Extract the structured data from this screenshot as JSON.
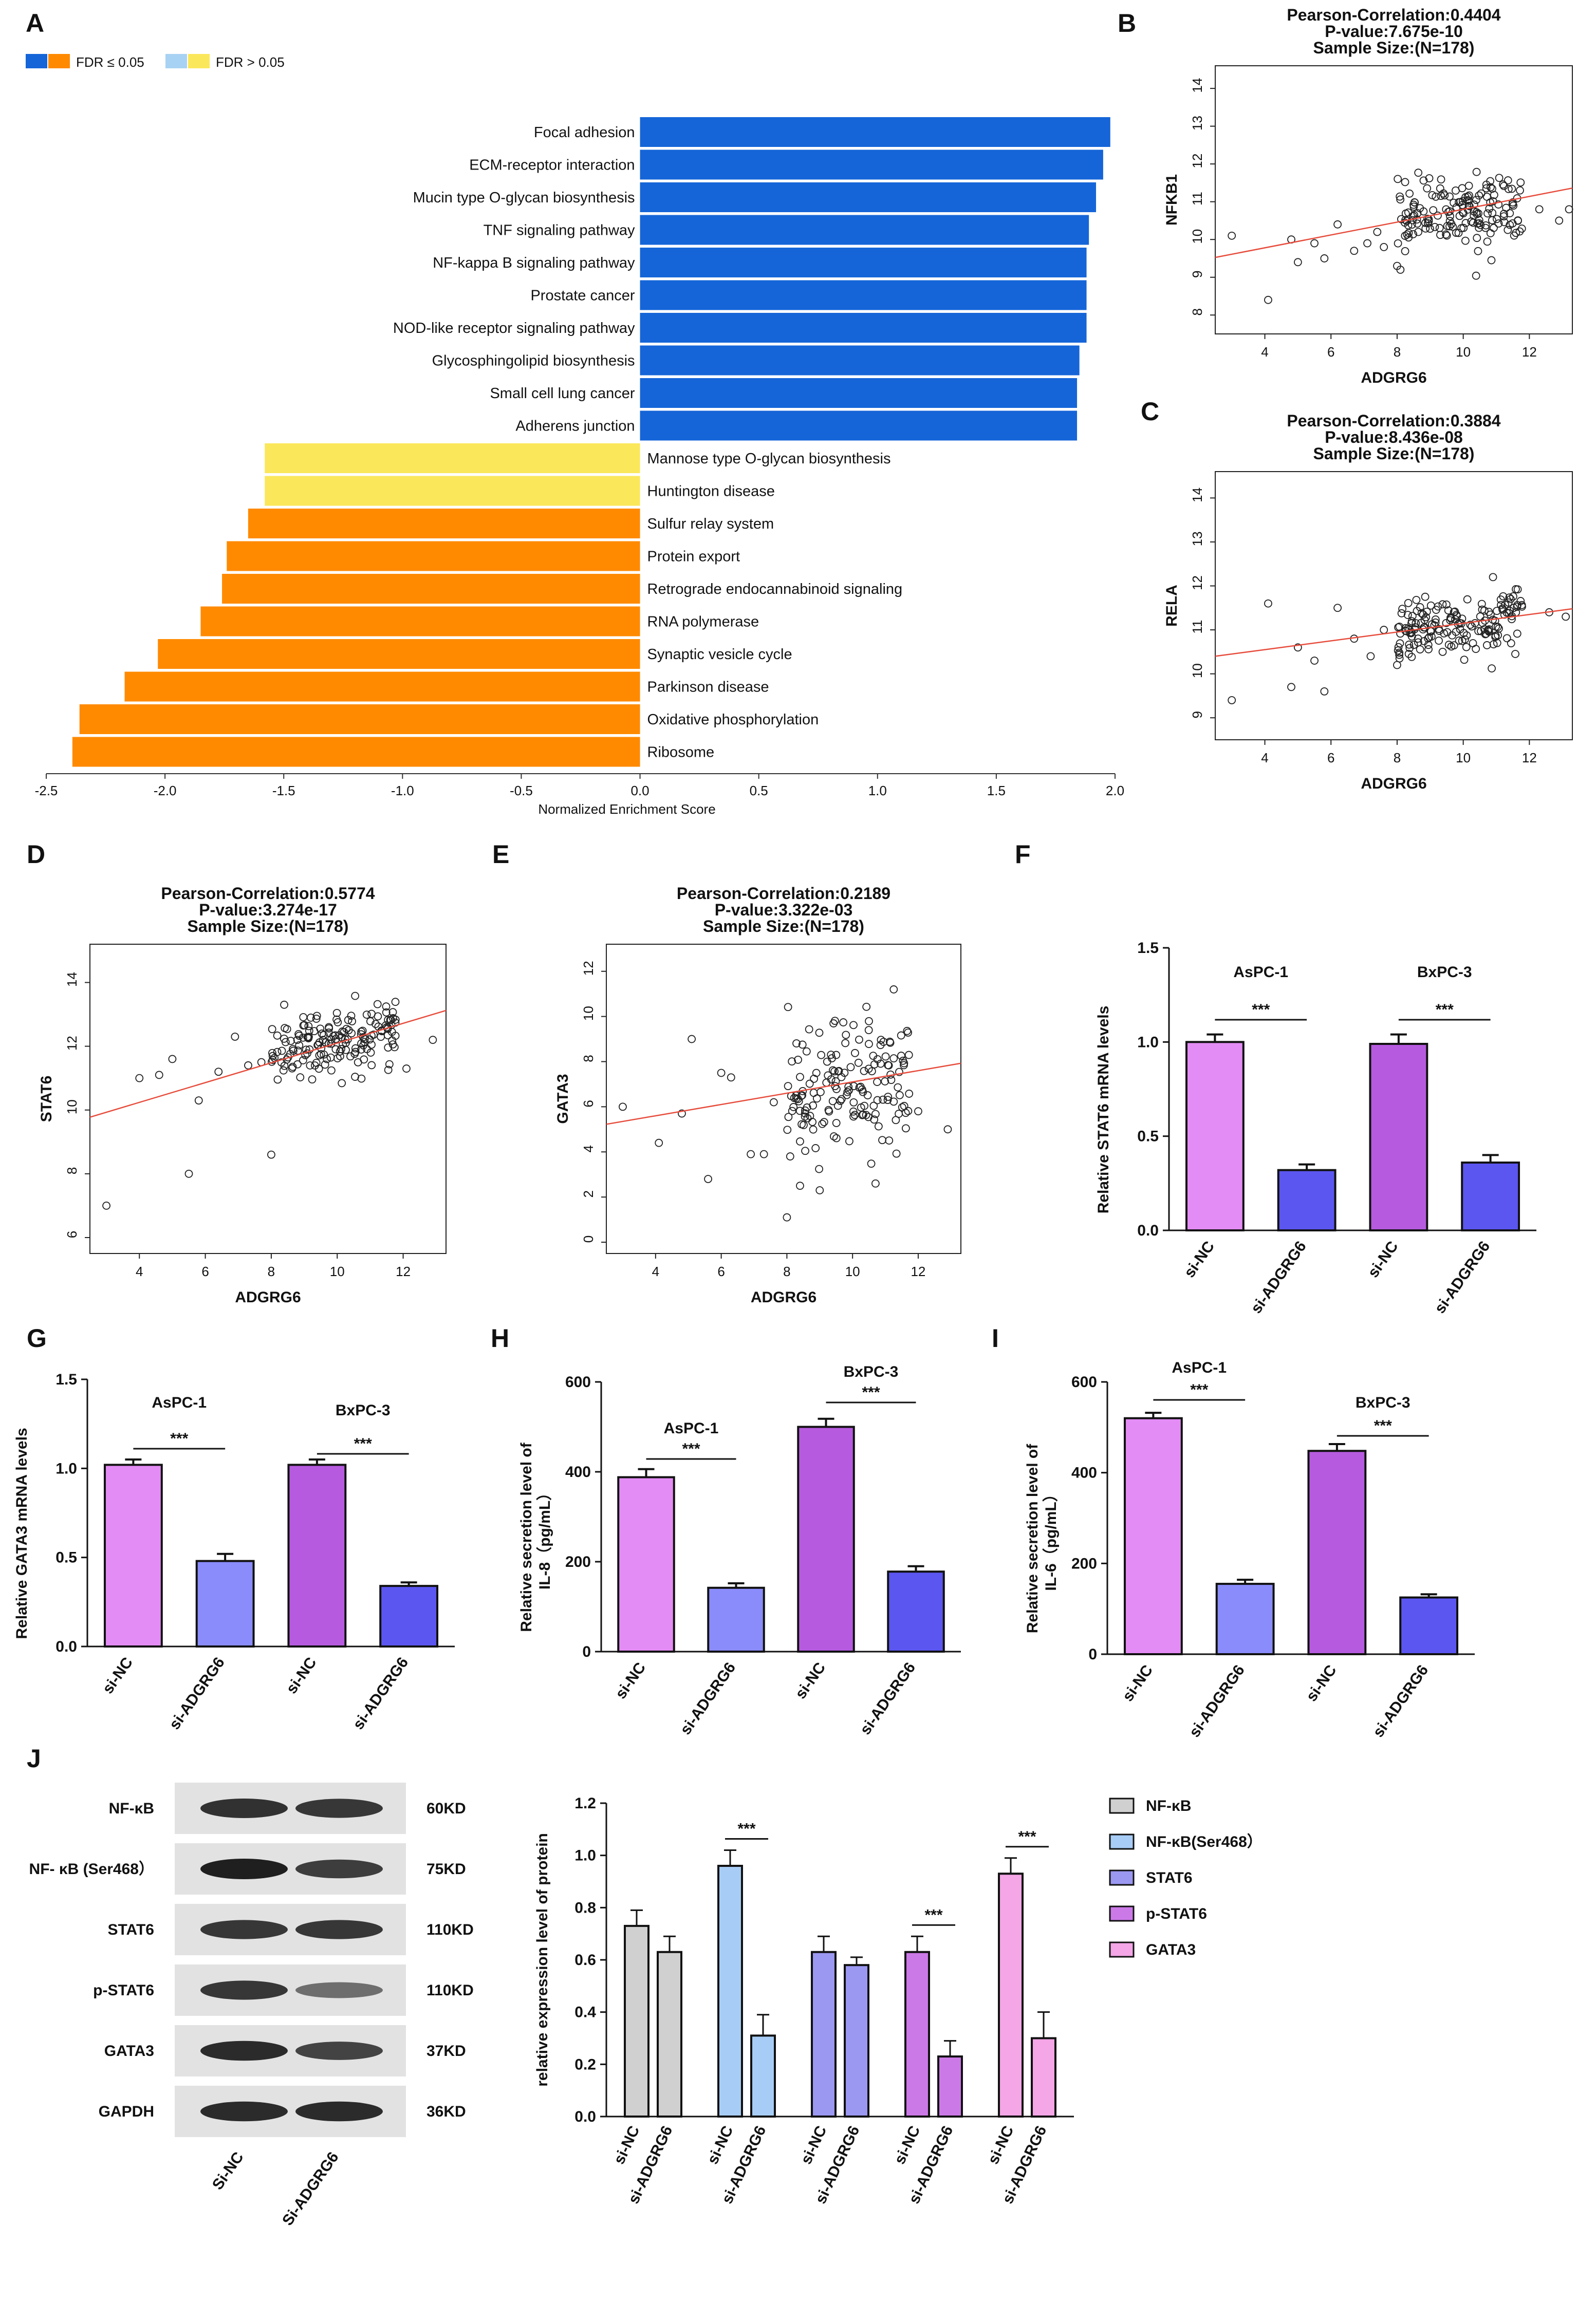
{
  "colors": {
    "up_sig": "#1565d8",
    "up_ns": "#a8d2f3",
    "down_sig": "#ff8a00",
    "down_ns": "#fbe75a",
    "scatter_line": "#e74c3c",
    "bar_nc": "#e48cf5",
    "bar_kd_light": "#8a8cfb",
    "bar_nc_dark": "#b65be0",
    "bar_kd_dark": "#5b56f0",
    "j_nfkb": "#d0d0d0",
    "j_nfkb468": "#a7cdf6",
    "j_stat6": "#9b98f2",
    "j_pstat6": "#cc79e8",
    "j_gata3": "#f4a6e6"
  },
  "panel_labels": [
    "A",
    "B",
    "C",
    "D",
    "E",
    "F",
    "G",
    "H",
    "I",
    "J"
  ],
  "chart_data": [
    {
      "id": "A",
      "type": "bar",
      "xlabel": "Normalized Enrichment Score",
      "xlim": [
        -2.5,
        2.0
      ],
      "xticks": [
        "-2.5",
        "-2.0",
        "-1.5",
        "-1.0",
        "-0.5",
        "0.0",
        "0.5",
        "1.0",
        "1.5",
        "2.0"
      ],
      "legend": {
        "sig": "FDR ≤ 0.05",
        "ns": "FDR > 0.05"
      },
      "categories": [
        "Focal adhesion",
        "ECM-receptor interaction",
        "Mucin type O-glycan biosynthesis",
        "TNF signaling pathway",
        "NF-kappa B signaling pathway",
        "Prostate cancer",
        "NOD-like receptor signaling pathway",
        "Glycosphingolipid biosynthesis",
        "Small cell lung cancer",
        "Adherens junction",
        "Mannose type O-glycan biosynthesis",
        "Huntington disease",
        "Sulfur relay system",
        "Protein export",
        "Retrograde endocannabinoid signaling",
        "RNA polymerase",
        "Synaptic vesicle cycle",
        "Parkinson disease",
        "Oxidative phosphorylation",
        "Ribosome"
      ],
      "values": [
        1.98,
        1.95,
        1.92,
        1.89,
        1.88,
        1.88,
        1.88,
        1.85,
        1.84,
        1.84,
        -1.58,
        -1.58,
        -1.65,
        -1.74,
        -1.76,
        -1.85,
        -2.03,
        -2.17,
        -2.36,
        -2.39
      ],
      "significant": [
        true,
        true,
        true,
        true,
        true,
        true,
        true,
        true,
        true,
        true,
        false,
        false,
        true,
        true,
        true,
        true,
        true,
        true,
        true,
        true
      ]
    },
    {
      "id": "B",
      "type": "scatter",
      "title": [
        "Pearson-Correlation:0.4404",
        "P-value:7.675e-10",
        "Sample Size:(N=178)"
      ],
      "xlabel": "ADGRG6",
      "ylabel": "NFKB1",
      "xlim": [
        2.5,
        13.3
      ],
      "ylim": [
        7.5,
        14.6
      ],
      "xticks": [
        "4",
        "6",
        "8",
        "10",
        "12"
      ],
      "yticks": [
        "8",
        "9",
        "10",
        "11",
        "12",
        "13",
        "14"
      ],
      "fit": {
        "slope": 0.17,
        "intercept": 9.1
      },
      "outliers": [
        [
          3.0,
          10.1
        ],
        [
          4.1,
          8.4
        ],
        [
          4.8,
          10.0
        ],
        [
          5.0,
          9.4
        ],
        [
          5.5,
          9.9
        ],
        [
          5.8,
          9.5
        ],
        [
          6.2,
          10.4
        ],
        [
          6.7,
          9.7
        ],
        [
          7.1,
          9.9
        ],
        [
          7.4,
          10.2
        ],
        [
          7.6,
          9.8
        ],
        [
          8.0,
          9.3
        ],
        [
          8.1,
          9.2
        ],
        [
          12.3,
          10.8
        ],
        [
          12.9,
          10.5
        ],
        [
          13.2,
          10.8
        ]
      ],
      "cluster": {
        "n": 162,
        "x_range": [
          8.0,
          11.8
        ],
        "y_center": 10.7,
        "y_spread": 0.45
      }
    },
    {
      "id": "C",
      "type": "scatter",
      "title": [
        "Pearson-Correlation:0.3884",
        "P-value:8.436e-08",
        "Sample Size:(N=178)"
      ],
      "xlabel": "ADGRG6",
      "ylabel": "RELA",
      "xlim": [
        2.5,
        13.3
      ],
      "ylim": [
        8.5,
        14.6
      ],
      "xticks": [
        "4",
        "6",
        "8",
        "10",
        "12"
      ],
      "yticks": [
        "9",
        "10",
        "11",
        "12",
        "13",
        "14"
      ],
      "fit": {
        "slope": 0.1,
        "intercept": 10.15
      },
      "outliers": [
        [
          3.0,
          9.4
        ],
        [
          4.1,
          11.6
        ],
        [
          4.8,
          9.7
        ],
        [
          5.0,
          10.6
        ],
        [
          5.5,
          10.3
        ],
        [
          5.8,
          9.6
        ],
        [
          6.2,
          11.5
        ],
        [
          6.7,
          10.8
        ],
        [
          7.2,
          10.4
        ],
        [
          7.6,
          11.0
        ],
        [
          8.0,
          10.2
        ],
        [
          10.9,
          12.2
        ],
        [
          12.6,
          11.4
        ],
        [
          13.1,
          11.3
        ]
      ],
      "cluster": {
        "n": 164,
        "x_range": [
          8.0,
          11.8
        ],
        "y_center": 11.1,
        "y_spread": 0.35
      }
    },
    {
      "id": "D",
      "type": "scatter",
      "title": [
        "Pearson-Correlation:0.5774",
        "P-value:3.274e-17",
        "Sample Size:(N=178)"
      ],
      "xlabel": "ADGRG6",
      "ylabel": "STAT6",
      "xlim": [
        2.5,
        13.3
      ],
      "ylim": [
        5.5,
        15.2
      ],
      "xticks": [
        "4",
        "6",
        "8",
        "10",
        "12"
      ],
      "yticks": [
        "6",
        "8",
        "10",
        "12",
        "14"
      ],
      "fit": {
        "slope": 0.31,
        "intercept": 9.0
      },
      "outliers": [
        [
          3.0,
          7.0
        ],
        [
          4.0,
          11.0
        ],
        [
          4.6,
          11.1
        ],
        [
          5.0,
          11.6
        ],
        [
          5.5,
          8.0
        ],
        [
          5.8,
          10.3
        ],
        [
          6.4,
          11.2
        ],
        [
          6.9,
          12.3
        ],
        [
          7.3,
          11.4
        ],
        [
          7.7,
          11.5
        ],
        [
          8.0,
          8.6
        ],
        [
          12.1,
          11.3
        ],
        [
          12.9,
          12.2
        ]
      ],
      "cluster": {
        "n": 165,
        "x_range": [
          8.0,
          11.8
        ],
        "y_center": 12.2,
        "y_spread": 0.5
      }
    },
    {
      "id": "E",
      "type": "scatter",
      "title": [
        "Pearson-Correlation:0.2189",
        "P-value:3.322e-03",
        "Sample Size:(N=178)"
      ],
      "xlabel": "ADGRG6",
      "ylabel": "GATA3",
      "xlim": [
        2.5,
        13.3
      ],
      "ylim": [
        -0.5,
        13.2
      ],
      "xticks": [
        "4",
        "6",
        "8",
        "10",
        "12"
      ],
      "yticks": [
        "0",
        "2",
        "4",
        "6",
        "8",
        "10",
        "12"
      ],
      "fit": {
        "slope": 0.25,
        "intercept": 4.6
      },
      "outliers": [
        [
          3.0,
          6.0
        ],
        [
          4.1,
          4.4
        ],
        [
          4.8,
          5.7
        ],
        [
          5.1,
          9.0
        ],
        [
          5.6,
          2.8
        ],
        [
          6.0,
          7.5
        ],
        [
          6.3,
          7.3
        ],
        [
          6.9,
          3.9
        ],
        [
          7.3,
          3.9
        ],
        [
          7.6,
          6.2
        ],
        [
          8.0,
          1.1
        ],
        [
          8.1,
          3.8
        ],
        [
          8.4,
          2.5
        ],
        [
          9.0,
          2.3
        ],
        [
          10.7,
          2.6
        ],
        [
          12.0,
          5.8
        ],
        [
          12.9,
          5.0
        ]
      ],
      "cluster": {
        "n": 161,
        "x_range": [
          8.0,
          11.8
        ],
        "y_center": 7.0,
        "y_spread": 1.4
      }
    },
    {
      "id": "F",
      "type": "bar",
      "ylabel": "Relative STAT6 mRNA levels",
      "ylim": [
        0,
        1.5
      ],
      "yticks": [
        "0.0",
        "0.5",
        "1.0",
        "1.5"
      ],
      "groups": [
        "AsPC-1",
        "BxPC-3"
      ],
      "categories": [
        "si-NC",
        "si-ADGRG6",
        "si-NC",
        "si-ADGRG6"
      ],
      "values": [
        1.0,
        0.32,
        0.99,
        0.36
      ],
      "errors": [
        0.04,
        0.03,
        0.05,
        0.04
      ],
      "sig": [
        "***",
        "***"
      ]
    },
    {
      "id": "G",
      "type": "bar",
      "ylabel": "Relative GATA3 mRNA levels",
      "ylim": [
        0,
        1.5
      ],
      "yticks": [
        "0.0",
        "0.5",
        "1.0",
        "1.5"
      ],
      "groups": [
        "AsPC-1",
        "BxPC-3"
      ],
      "categories": [
        "si-NC",
        "si-ADGRG6",
        "si-NC",
        "si-ADGRG6"
      ],
      "values": [
        1.02,
        0.48,
        1.02,
        0.34
      ],
      "errors": [
        0.03,
        0.04,
        0.03,
        0.02
      ],
      "sig": [
        "***",
        "***"
      ]
    },
    {
      "id": "H",
      "type": "bar",
      "ylabel": [
        "Relative secretion level of",
        "IL-8（pg/mL）"
      ],
      "ylim": [
        0,
        600
      ],
      "yticks": [
        "0",
        "200",
        "400",
        "600"
      ],
      "groups": [
        "AsPC-1",
        "BxPC-3"
      ],
      "categories": [
        "si-NC",
        "si-ADGRG6",
        "si-NC",
        "si-ADGRG6"
      ],
      "values": [
        388,
        142,
        500,
        178
      ],
      "errors": [
        18,
        10,
        18,
        12
      ],
      "sig": [
        "***",
        "***"
      ]
    },
    {
      "id": "I",
      "type": "bar",
      "ylabel": [
        "Relative secretion level of",
        "IL-6（pg/mL）"
      ],
      "ylim": [
        0,
        600
      ],
      "yticks": [
        "0",
        "200",
        "400",
        "600"
      ],
      "groups": [
        "AsPC-1",
        "BxPC-3"
      ],
      "categories": [
        "si-NC",
        "si-ADGRG6",
        "si-NC",
        "si-ADGRG6"
      ],
      "values": [
        520,
        155,
        448,
        125
      ],
      "errors": [
        12,
        9,
        15,
        7
      ],
      "sig": [
        "***",
        "***"
      ]
    },
    {
      "id": "J",
      "type": "bar",
      "ylabel": "relative expression level of protein",
      "ylim": [
        0,
        1.2
      ],
      "yticks": [
        "0.0",
        "0.2",
        "0.4",
        "0.6",
        "0.8",
        "1.0",
        "1.2"
      ],
      "series": [
        {
          "name": "NF-κB",
          "values": [
            0.73,
            0.63
          ],
          "errors": [
            0.06,
            0.06
          ],
          "sig": ""
        },
        {
          "name": "NF-κB(Ser468）",
          "values": [
            0.96,
            0.31
          ],
          "errors": [
            0.06,
            0.08
          ],
          "sig": "***"
        },
        {
          "name": "STAT6",
          "values": [
            0.63,
            0.58
          ],
          "errors": [
            0.06,
            0.03
          ],
          "sig": ""
        },
        {
          "name": "p-STAT6",
          "values": [
            0.63,
            0.23
          ],
          "errors": [
            0.06,
            0.06
          ],
          "sig": "***"
        },
        {
          "name": "GATA3",
          "values": [
            0.93,
            0.3
          ],
          "errors": [
            0.06,
            0.1
          ],
          "sig": "***"
        }
      ],
      "categories": [
        "si-NC",
        "si-ADGRG6"
      ]
    }
  ],
  "western_blot": {
    "rows": [
      {
        "label": "NF-κB",
        "weight": "60KD",
        "intensity": [
          0.85,
          0.8
        ]
      },
      {
        "label": "NF- κB (Ser468）",
        "weight": "75KD",
        "intensity": [
          1.0,
          0.75
        ]
      },
      {
        "label": "STAT6",
        "weight": "110KD",
        "intensity": [
          0.8,
          0.8
        ]
      },
      {
        "label": "p-STAT6",
        "weight": "110KD",
        "intensity": [
          0.8,
          0.35
        ]
      },
      {
        "label": "GATA3",
        "weight": "37KD",
        "intensity": [
          0.9,
          0.7
        ]
      },
      {
        "label": "GAPDH",
        "weight": "36KD",
        "intensity": [
          0.9,
          0.9
        ]
      }
    ],
    "lanes": [
      "Si-NC",
      "Si-ADGRG6"
    ]
  }
}
